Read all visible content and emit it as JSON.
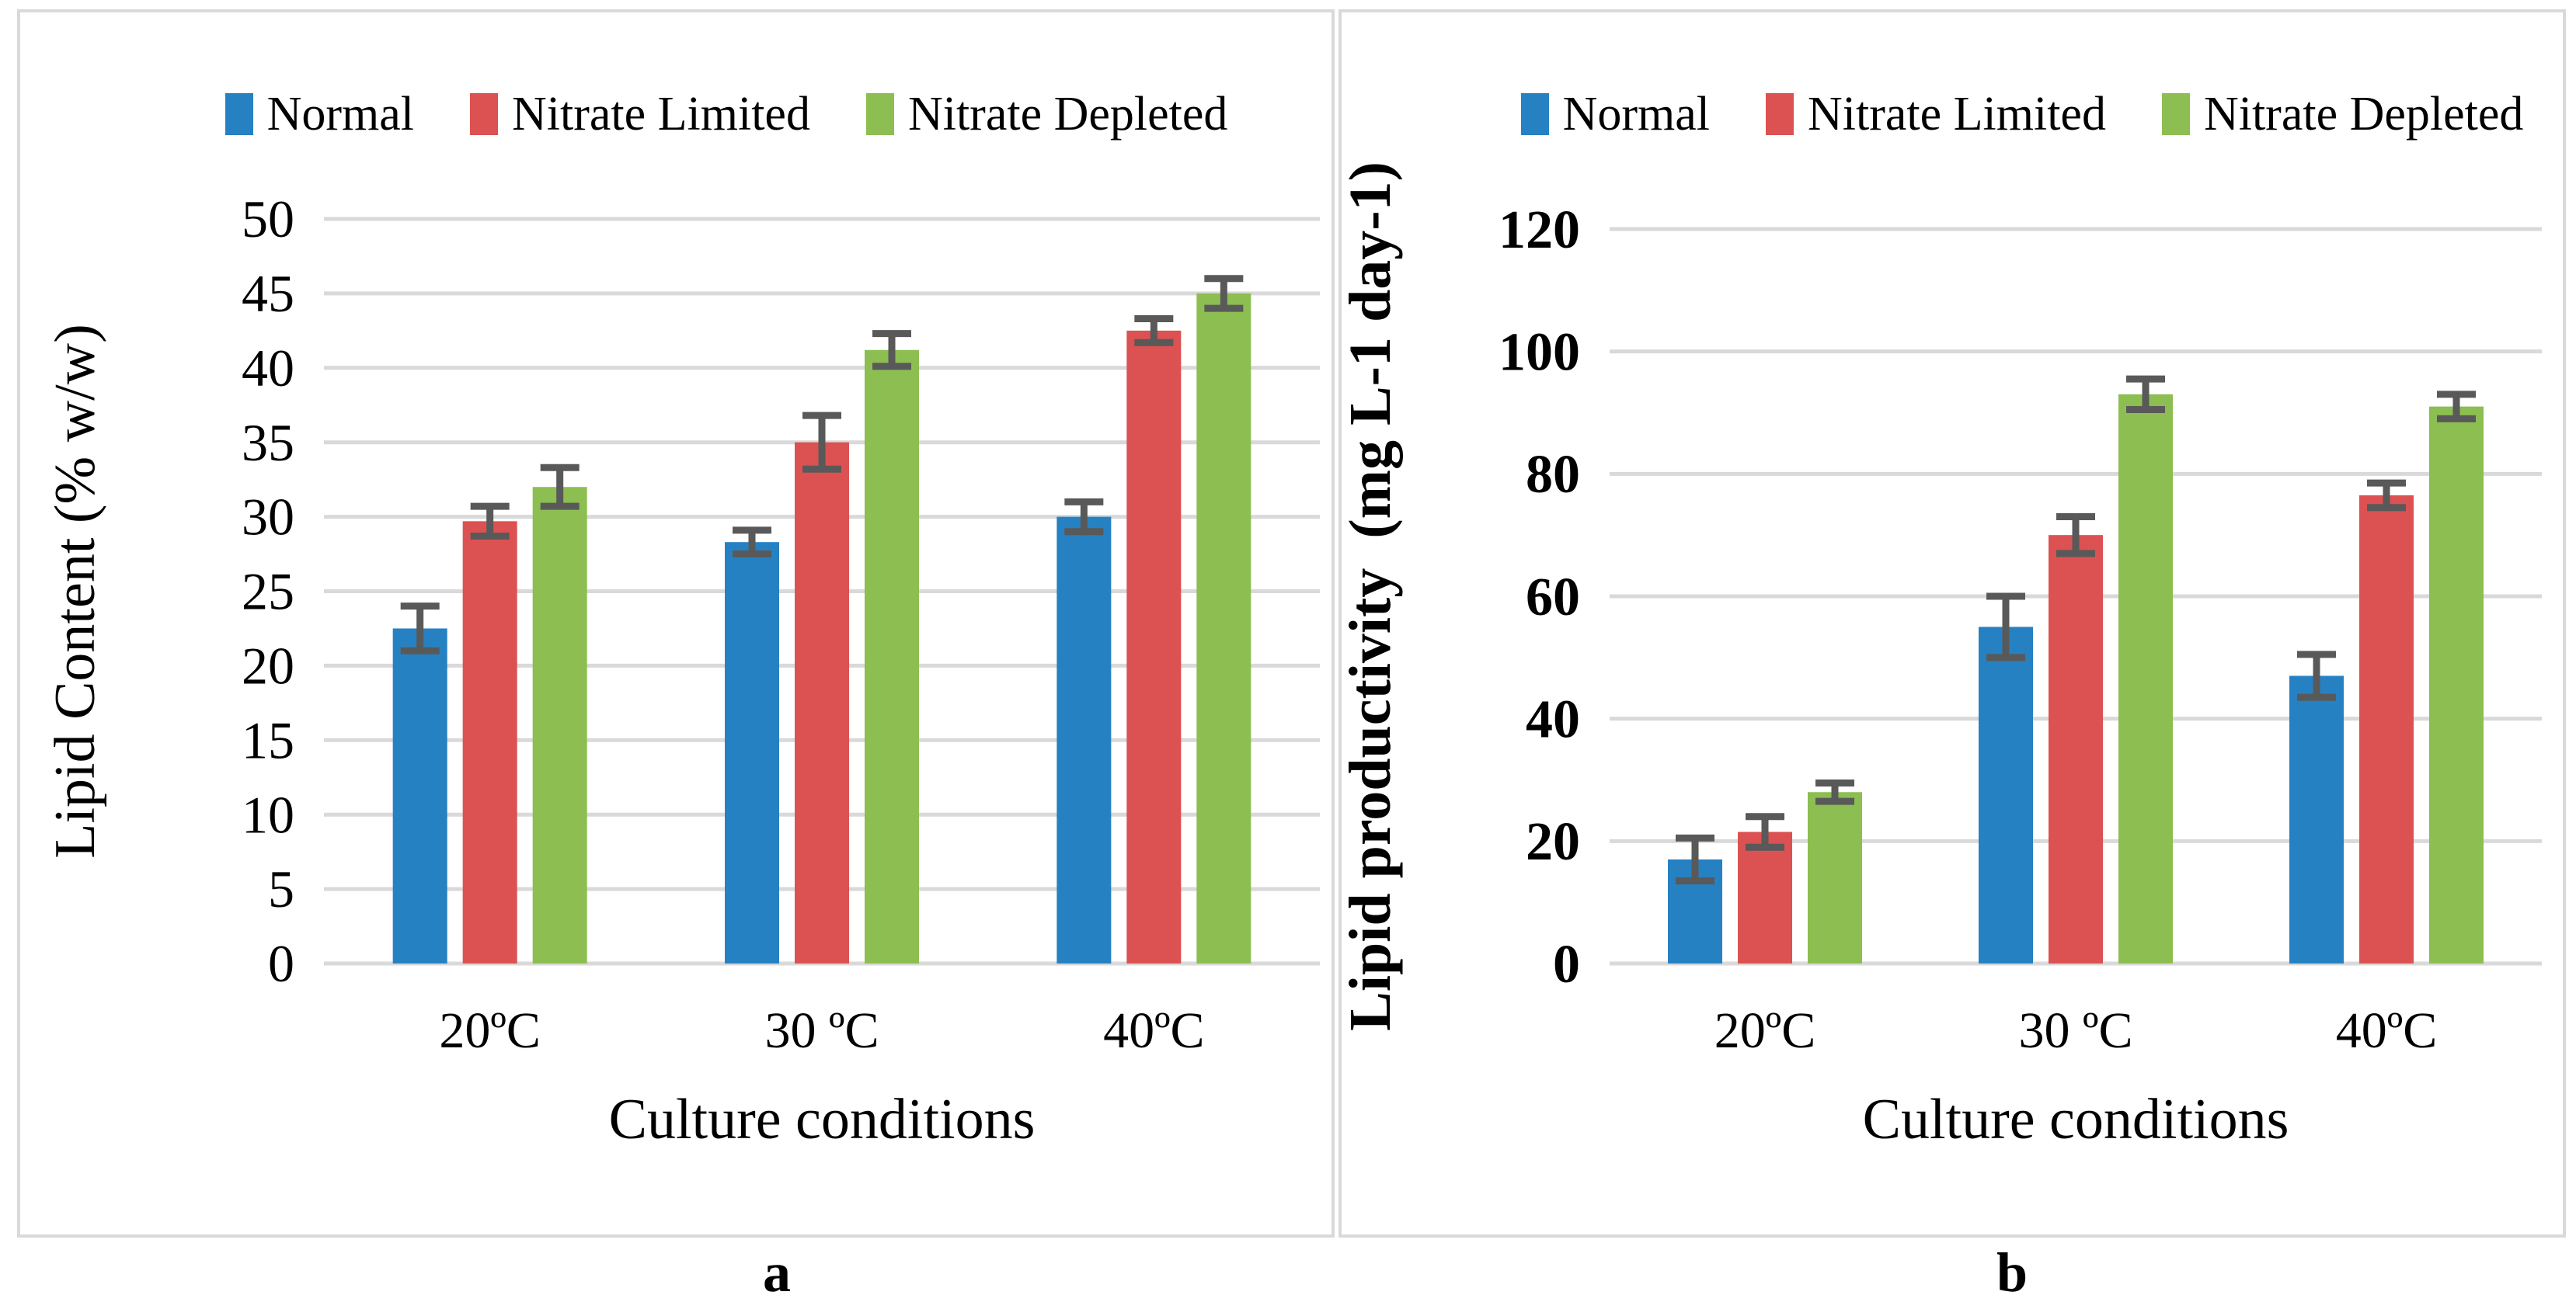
{
  "figure": {
    "background": "#FFFFFF",
    "panel_border_color": "#D9D9D9"
  },
  "colors": {
    "gridline": "#D9D9D9",
    "error_bar": "#595959",
    "normal": "#2681C2",
    "nitrate_limited": "#DC5151",
    "nitrate_depleted": "#8CBE51"
  },
  "legend_items": [
    "Normal",
    "Nitrate Limited",
    "Nitrate Depleted"
  ],
  "chart_data": [
    {
      "type": "bar",
      "panel": "a",
      "panel_label": "a",
      "categories": [
        "20ºC",
        "30 ºC",
        "40ºC"
      ],
      "series": [
        {
          "name": "Normal",
          "color": "#2681C2",
          "values": [
            22.5,
            28.3,
            30.0
          ],
          "errors": [
            1.5,
            0.8,
            1.0
          ]
        },
        {
          "name": "Nitrate Limited",
          "color": "#DC5151",
          "values": [
            29.7,
            35.0,
            42.5
          ],
          "errors": [
            1.0,
            1.8,
            0.8
          ]
        },
        {
          "name": "Nitrate Depleted",
          "color": "#8CBE51",
          "values": [
            32.0,
            41.2,
            45.0
          ],
          "errors": [
            1.3,
            1.1,
            1.0
          ]
        }
      ],
      "xlabel": "Culture conditions",
      "ylabel": "Lipid Content (% w/w)",
      "ylim": [
        0,
        50
      ],
      "ytick_step": 5,
      "grid": true,
      "legend_position": "top"
    },
    {
      "type": "bar",
      "panel": "b",
      "panel_label": "b",
      "categories": [
        "20ºC",
        "30 ºC",
        "40ºC"
      ],
      "series": [
        {
          "name": "Normal",
          "color": "#2681C2",
          "values": [
            17.0,
            55.0,
            47.0
          ],
          "errors": [
            3.5,
            5.0,
            3.5
          ]
        },
        {
          "name": "Nitrate Limited",
          "color": "#DC5151",
          "values": [
            21.5,
            70.0,
            76.5
          ],
          "errors": [
            2.5,
            3.0,
            2.0
          ]
        },
        {
          "name": "Nitrate Depleted",
          "color": "#8CBE51",
          "values": [
            28.0,
            93.0,
            91.0
          ],
          "errors": [
            1.5,
            2.5,
            2.0
          ]
        }
      ],
      "xlabel": "Culture conditions",
      "ylabel": "Lipid productivity  (mg L-1 day-1)",
      "ylim": [
        0,
        120
      ],
      "ytick_step": 20,
      "grid": true,
      "legend_position": "top"
    }
  ]
}
